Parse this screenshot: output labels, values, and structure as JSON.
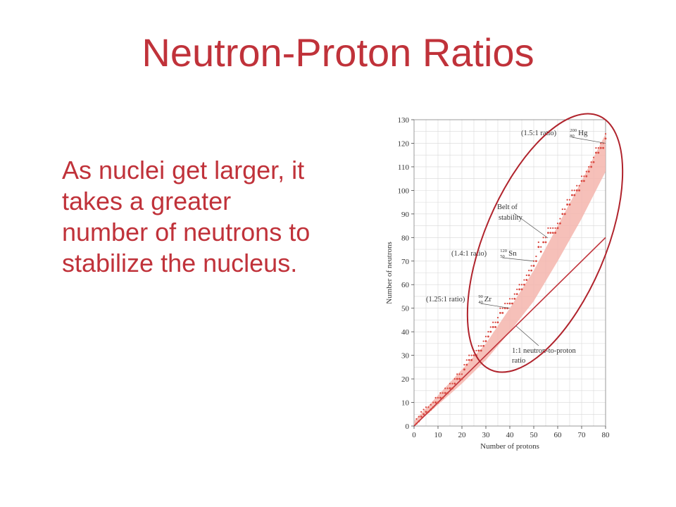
{
  "slide": {
    "title": "Neutron-Proton Ratios",
    "body": "As nuclei get larger, it takes a greater number of neutrons to stabilize the nucleus."
  },
  "colors": {
    "title": "#c0323a",
    "band": "#f5b5ad",
    "dots": "#d9473f",
    "line": "#c0323a",
    "ellipse": "#b0232c",
    "grid": "#d8d8d8"
  },
  "chart_data": {
    "type": "scatter",
    "xlabel": "Number of protons",
    "ylabel": "Number of neutrons",
    "xlim": [
      0,
      80
    ],
    "ylim": [
      0,
      130
    ],
    "xticks": [
      0,
      10,
      20,
      30,
      40,
      50,
      60,
      70,
      80
    ],
    "yticks": [
      0,
      10,
      20,
      30,
      40,
      50,
      60,
      70,
      80,
      90,
      100,
      110,
      120,
      130
    ],
    "grid": true,
    "reference_line": {
      "label": "1:1 neutron-to-proton ratio",
      "x": [
        0,
        80
      ],
      "y": [
        0,
        80
      ]
    },
    "belt": {
      "label": "Belt of stability",
      "x": [
        0,
        10,
        20,
        30,
        40,
        50,
        60,
        70,
        80
      ],
      "lower": [
        0,
        9,
        18,
        28,
        40,
        53,
        70,
        88,
        108
      ],
      "upper": [
        2,
        13,
        24,
        35,
        50,
        66,
        85,
        104,
        124
      ]
    },
    "stable_nuclei": {
      "x": [
        1,
        2,
        3,
        4,
        5,
        6,
        7,
        8,
        9,
        10,
        11,
        12,
        13,
        14,
        15,
        16,
        17,
        18,
        19,
        20,
        21,
        22,
        23,
        24,
        25,
        26,
        27,
        28,
        29,
        30,
        31,
        32,
        33,
        34,
        35,
        36,
        37,
        38,
        39,
        40,
        41,
        42,
        43,
        44,
        45,
        46,
        47,
        48,
        49,
        50,
        51,
        52,
        53,
        54,
        55,
        56,
        57,
        58,
        59,
        60,
        61,
        62,
        63,
        64,
        65,
        66,
        67,
        68,
        69,
        70,
        71,
        72,
        73,
        74,
        75,
        76,
        77,
        78,
        79,
        80
      ],
      "y": [
        1,
        2,
        4,
        5,
        6,
        6,
        7,
        8,
        10,
        10,
        12,
        12,
        14,
        14,
        16,
        16,
        18,
        20,
        20,
        20,
        24,
        26,
        28,
        28,
        30,
        30,
        32,
        32,
        34,
        36,
        38,
        40,
        42,
        42,
        44,
        48,
        48,
        50,
        50,
        52,
        52,
        54,
        56,
        58,
        58,
        60,
        62,
        64,
        66,
        68,
        70,
        76,
        74,
        78,
        78,
        82,
        82,
        82,
        82,
        84,
        86,
        90,
        90,
        94,
        94,
        98,
        98,
        100,
        100,
        104,
        104,
        106,
        108,
        110,
        112,
        116,
        116,
        118,
        118,
        122
      ]
    },
    "annotations": [
      {
        "label": "(1.5:1 ratio)",
        "isotope": "Hg",
        "mass": "200",
        "z": "80",
        "x": 80,
        "y": 120
      },
      {
        "label": "(1.4:1 ratio)",
        "isotope": "Sn",
        "mass": "120",
        "z": "50",
        "x": 50,
        "y": 70
      },
      {
        "label": "(1.25:1 ratio)",
        "isotope": "Zr",
        "mass": "90",
        "z": "40",
        "x": 40,
        "y": 50
      }
    ]
  }
}
